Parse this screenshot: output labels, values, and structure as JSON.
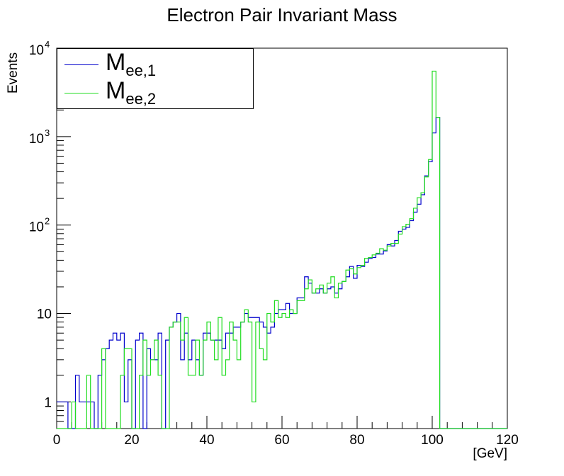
{
  "chart_data": {
    "type": "histogram",
    "title": "Electron Pair Invariant Mass",
    "xlabel": "[GeV]",
    "ylabel": "Events",
    "xlim": [
      0,
      120
    ],
    "ylim": [
      0.5,
      10000
    ],
    "y_scale": "log",
    "bin_width": 1,
    "x_ticks": [
      "0",
      "20",
      "40",
      "60",
      "80",
      "100",
      "120"
    ],
    "y_ticks": [
      {
        "value": 1,
        "base": "1",
        "exp": ""
      },
      {
        "value": 10,
        "base": "10",
        "exp": ""
      },
      {
        "value": 100,
        "base": "10",
        "exp": "2"
      },
      {
        "value": 1000,
        "base": "10",
        "exp": "3"
      },
      {
        "value": 10000,
        "base": "10",
        "exp": "4"
      }
    ],
    "legend_position": "top-left",
    "series": [
      {
        "name": "M_ee,1",
        "label_main": "M",
        "label_sub": "ee,1",
        "color": "#0000cc",
        "bin_edges_start": 0,
        "values": [
          1,
          1,
          1,
          0,
          0,
          2,
          1,
          1,
          1,
          1,
          0,
          2,
          3,
          4,
          5,
          6,
          5,
          6,
          1,
          3,
          0,
          5,
          6,
          0,
          4,
          3,
          3,
          6,
          0,
          5,
          7,
          8,
          10,
          3,
          6,
          3,
          5,
          3,
          2,
          6,
          6,
          5,
          5,
          5,
          4,
          6,
          6,
          7,
          7,
          8,
          10,
          9,
          9,
          9,
          8,
          7,
          6,
          7,
          10,
          11,
          11,
          13,
          10,
          10,
          15,
          15,
          26,
          22,
          17,
          17,
          19,
          17,
          19,
          20,
          17,
          19,
          23,
          26,
          34,
          25,
          35,
          34,
          38,
          42,
          43,
          47,
          47,
          51,
          60,
          58,
          67,
          85,
          90,
          94,
          112,
          140,
          172,
          220,
          360,
          520,
          1100,
          1650,
          0,
          0,
          0,
          0,
          0,
          0,
          0,
          0,
          0,
          0,
          0,
          0,
          0,
          0,
          0,
          0,
          0,
          0
        ]
      },
      {
        "name": "M_ee,2",
        "label_main": "M",
        "label_sub": "ee,2",
        "color": "#22dd22",
        "bin_edges_start": 0,
        "values": [
          0,
          0,
          0,
          0,
          1,
          0,
          0,
          0,
          2,
          0,
          0,
          0,
          4,
          0,
          0,
          0,
          0,
          2,
          4,
          4,
          0,
          0,
          2,
          5,
          2,
          3,
          5,
          2,
          0,
          0,
          7,
          8,
          8,
          5,
          9,
          2,
          2,
          5,
          2,
          5,
          8,
          5,
          3,
          9,
          2,
          3,
          8,
          5,
          3,
          8,
          11,
          8,
          1,
          8,
          4,
          3,
          10,
          8,
          14,
          9,
          10,
          9,
          11,
          10,
          14,
          14,
          19,
          24,
          17,
          19,
          21,
          17,
          22,
          26,
          15,
          22,
          23,
          31,
          32,
          28,
          33,
          35,
          42,
          43,
          46,
          48,
          54,
          52,
          58,
          62,
          62,
          79,
          96,
          102,
          118,
          155,
          204,
          232,
          350,
          550,
          5500,
          1650,
          0,
          0,
          0,
          0,
          0,
          0,
          0,
          0,
          0,
          0,
          0,
          0,
          0,
          0,
          0,
          0,
          0,
          0
        ]
      }
    ]
  }
}
